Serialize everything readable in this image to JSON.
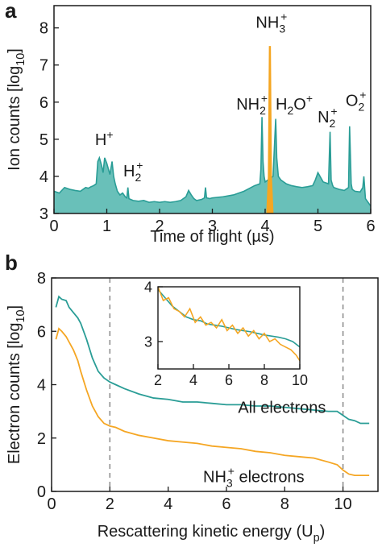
{
  "panel_a_label": "a",
  "panel_b_label": "b",
  "chart_data": [
    {
      "type": "area",
      "panel": "a",
      "xlabel": "Time of flight (µs)",
      "ylabel_main": "Ion counts [log",
      "ylabel_sub": "10",
      "ylabel_end": "]",
      "xlim": [
        0,
        6
      ],
      "ylim": [
        3,
        8.6
      ],
      "xticks": [
        0,
        1,
        2,
        3,
        4,
        5,
        6
      ],
      "yticks": [
        3,
        4,
        5,
        6,
        7,
        8
      ],
      "xtick_labels": [
        "0",
        "1",
        "2",
        "3",
        "4",
        "5",
        "6"
      ],
      "ytick_labels": [
        "3",
        "4",
        "5",
        "6",
        "7",
        "8"
      ],
      "colors": {
        "all": "#2a9d96",
        "all_fill": "#4fb5ad",
        "nh3": "#f5a623"
      },
      "series": [
        {
          "key": "all",
          "x": [
            0,
            0.1,
            0.2,
            0.3,
            0.4,
            0.5,
            0.55,
            0.6,
            0.65,
            0.7,
            0.75,
            0.8,
            0.83,
            0.86,
            0.9,
            0.93,
            0.96,
            1.0,
            1.03,
            1.06,
            1.1,
            1.13,
            1.16,
            1.2,
            1.25,
            1.3,
            1.35,
            1.38,
            1.4,
            1.42,
            1.45,
            1.5,
            1.6,
            1.7,
            1.8,
            1.9,
            2.0,
            2.1,
            2.2,
            2.3,
            2.4,
            2.5,
            2.55,
            2.6,
            2.65,
            2.7,
            2.8,
            2.85,
            2.87,
            2.89,
            2.95,
            3.0,
            3.2,
            3.4,
            3.6,
            3.8,
            3.9,
            3.92,
            3.94,
            3.96,
            3.98,
            4.0,
            4.05,
            4.1,
            4.15,
            4.2,
            4.22,
            4.25,
            4.3,
            4.4,
            4.5,
            4.6,
            4.7,
            4.8,
            4.9,
            4.95,
            5.0,
            5.1,
            5.2,
            5.23,
            5.25,
            5.28,
            5.3,
            5.4,
            5.5,
            5.58,
            5.6,
            5.63,
            5.65,
            5.7,
            5.8,
            5.85,
            5.87,
            5.9,
            6.0
          ],
          "y": [
            3.6,
            3.55,
            3.7,
            3.65,
            3.62,
            3.6,
            3.65,
            3.7,
            3.68,
            3.72,
            3.75,
            3.8,
            4.4,
            4.5,
            4.3,
            4.1,
            4.5,
            4.35,
            4.2,
            4.05,
            4.4,
            4.0,
            3.8,
            3.6,
            3.5,
            3.55,
            3.45,
            3.42,
            3.7,
            3.4,
            3.38,
            3.35,
            3.33,
            3.35,
            3.3,
            3.32,
            3.3,
            3.32,
            3.3,
            3.32,
            3.35,
            3.45,
            3.62,
            3.5,
            3.4,
            3.35,
            3.38,
            3.42,
            3.7,
            3.42,
            3.4,
            3.42,
            3.45,
            3.5,
            3.6,
            3.75,
            3.8,
            4.2,
            5.6,
            4.4,
            4.0,
            3.85,
            3.9,
            3.95,
            4.0,
            5.55,
            4.5,
            4.0,
            3.9,
            3.8,
            3.75,
            3.72,
            3.7,
            3.72,
            3.75,
            3.9,
            4.1,
            3.85,
            3.8,
            5.2,
            3.9,
            3.75,
            3.7,
            3.65,
            3.62,
            3.7,
            5.35,
            3.8,
            3.65,
            3.6,
            3.58,
            3.7,
            4.0,
            3.4,
            3.2
          ]
        },
        {
          "key": "nh3",
          "x": [
            4.03,
            4.06,
            4.08,
            4.1,
            4.12,
            4.15
          ],
          "y": [
            3.0,
            4.0,
            7.5,
            7.5,
            4.0,
            3.0
          ]
        }
      ],
      "annotations": [
        {
          "key": "h",
          "x": 0.95,
          "y": 4.85,
          "base": "H",
          "sup": "+"
        },
        {
          "key": "h2",
          "x": 1.5,
          "y": 4.0,
          "base": "H",
          "sub": "2",
          "sup": "+"
        },
        {
          "key": "nh3",
          "x": 4.12,
          "y": 8.0,
          "base": "NH",
          "sub": "3",
          "sup": "+"
        },
        {
          "key": "nh2",
          "x": 3.75,
          "y": 5.8,
          "base": "NH",
          "sub": "2",
          "sup": "+"
        },
        {
          "key": "h2o",
          "x": 4.55,
          "y": 5.8,
          "base": "H",
          "sub": "2",
          "mid": "O",
          "sup": "+"
        },
        {
          "key": "n2",
          "x": 5.18,
          "y": 5.45,
          "base": "N",
          "sub": "2",
          "sup": "+"
        },
        {
          "key": "o2",
          "x": 5.72,
          "y": 5.9,
          "base": "O",
          "sub": "2",
          "sup": "+"
        }
      ]
    },
    {
      "type": "line",
      "panel": "b",
      "xlabel_main": "Rescattering kinetic energy (U",
      "xlabel_sub": "p",
      "xlabel_end": ")",
      "ylabel_main": "Electron counts [log",
      "ylabel_sub": "10",
      "ylabel_end": "]",
      "xlim": [
        0,
        11.2
      ],
      "ylim": [
        0,
        8
      ],
      "xticks": [
        0,
        2,
        4,
        6,
        8,
        10
      ],
      "yticks": [
        0,
        2,
        4,
        6,
        8
      ],
      "xtick_labels": [
        "0",
        "2",
        "4",
        "6",
        "8",
        "10"
      ],
      "ytick_labels": [
        "0",
        "2",
        "4",
        "6",
        "8"
      ],
      "vlines": [
        2,
        10
      ],
      "series": [
        {
          "key": "all",
          "name": "All electrons",
          "color": "#2a9d96",
          "x": [
            0.15,
            0.25,
            0.35,
            0.5,
            0.6,
            0.75,
            0.9,
            1.0,
            1.2,
            1.4,
            1.6,
            1.8,
            2.0,
            2.2,
            2.5,
            3.0,
            3.5,
            4.0,
            4.5,
            5.0,
            5.5,
            6.0,
            6.5,
            7.0,
            7.5,
            8.0,
            8.5,
            9.0,
            9.5,
            9.8,
            10.0,
            10.2,
            10.4,
            10.6,
            10.9
          ],
          "y": [
            6.9,
            7.3,
            7.2,
            7.15,
            6.9,
            6.7,
            6.5,
            6.3,
            5.7,
            5.0,
            4.5,
            4.25,
            4.1,
            4.0,
            3.85,
            3.65,
            3.5,
            3.45,
            3.35,
            3.35,
            3.3,
            3.25,
            3.25,
            3.2,
            3.2,
            3.15,
            3.1,
            3.05,
            3.0,
            3.0,
            2.85,
            2.7,
            2.65,
            2.55,
            2.55
          ]
        },
        {
          "key": "nh3",
          "name_main": "NH",
          "name_sup": "3",
          "name_sup2": "+",
          "name_end": " electrons",
          "color": "#f5a623",
          "x": [
            0.15,
            0.25,
            0.35,
            0.5,
            0.6,
            0.75,
            0.9,
            1.0,
            1.2,
            1.4,
            1.6,
            1.8,
            2.0,
            2.2,
            2.5,
            3.0,
            3.5,
            4.0,
            4.5,
            5.0,
            5.5,
            6.0,
            6.5,
            7.0,
            7.5,
            8.0,
            8.5,
            9.0,
            9.5,
            9.8,
            10.0,
            10.2,
            10.4,
            10.6,
            10.9
          ],
          "y": [
            5.7,
            6.1,
            6.0,
            5.8,
            5.6,
            5.3,
            4.9,
            4.5,
            3.8,
            3.2,
            2.8,
            2.55,
            2.45,
            2.4,
            2.25,
            2.1,
            2.0,
            1.9,
            1.85,
            1.8,
            1.7,
            1.65,
            1.6,
            1.5,
            1.45,
            1.35,
            1.3,
            1.25,
            1.1,
            1.0,
            0.8,
            0.65,
            0.6,
            0.6,
            0.6
          ]
        }
      ],
      "inset": {
        "xlim": [
          2,
          10
        ],
        "ylim": [
          2.5,
          4.0
        ],
        "xticks": [
          2,
          4,
          6,
          8,
          10
        ],
        "yticks": [
          3,
          4
        ],
        "xtick_labels": [
          "2",
          "4",
          "6",
          "8",
          "10"
        ],
        "ytick_labels": [
          "3",
          "4"
        ],
        "series": [
          {
            "key": "all",
            "color": "#2a9d96",
            "x": [
              2.0,
              2.4,
              2.8,
              3.2,
              3.6,
              4.0,
              4.4,
              4.8,
              5.2,
              5.6,
              6.0,
              6.4,
              6.8,
              7.2,
              7.6,
              8.0,
              8.4,
              8.8,
              9.2,
              9.6,
              10.0
            ],
            "y": [
              3.95,
              3.8,
              3.65,
              3.55,
              3.45,
              3.4,
              3.38,
              3.32,
              3.3,
              3.28,
              3.25,
              3.22,
              3.2,
              3.18,
              3.15,
              3.12,
              3.1,
              3.08,
              3.05,
              3.0,
              2.9
            ]
          },
          {
            "key": "nh3",
            "color": "#f5a623",
            "x": [
              2.0,
              2.3,
              2.6,
              2.9,
              3.2,
              3.5,
              3.8,
              4.1,
              4.4,
              4.7,
              5.0,
              5.3,
              5.6,
              5.9,
              6.2,
              6.5,
              6.8,
              7.1,
              7.4,
              7.7,
              8.0,
              8.3,
              8.6,
              8.9,
              9.2,
              9.5,
              9.8,
              10.0
            ],
            "y": [
              4.0,
              3.75,
              3.8,
              3.6,
              3.55,
              3.45,
              3.6,
              3.35,
              3.45,
              3.3,
              3.35,
              3.25,
              3.4,
              3.2,
              3.3,
              3.15,
              3.25,
              3.1,
              3.2,
              3.05,
              3.15,
              3.0,
              3.05,
              2.95,
              2.9,
              2.85,
              2.75,
              2.65
            ]
          }
        ]
      }
    }
  ]
}
